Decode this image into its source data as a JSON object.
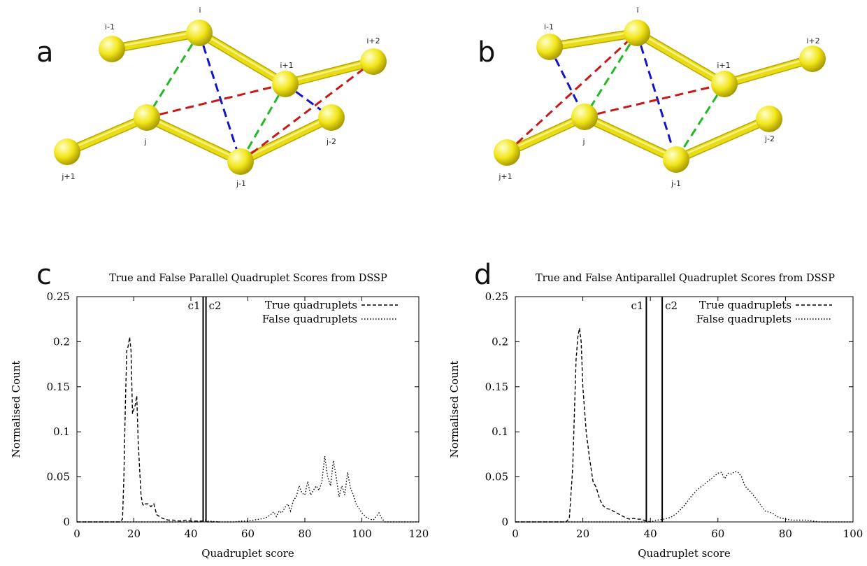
{
  "panels": [
    {
      "id": "a",
      "letter": "a",
      "nodes": [
        {
          "label": "i-1",
          "x": 0,
          "y": 0
        },
        {
          "label": "i",
          "x": 0,
          "y": 0
        },
        {
          "label": "i+1",
          "x": 0,
          "y": 0
        },
        {
          "label": "i+2",
          "x": 0,
          "y": 0
        },
        {
          "label": "j+1",
          "x": 0,
          "y": 0
        },
        {
          "label": "j",
          "x": 0,
          "y": 0
        },
        {
          "label": "j-1",
          "x": 0,
          "y": 0
        },
        {
          "label": "j-2",
          "x": 0,
          "y": 0
        }
      ],
      "bonds": [
        [
          "i-1",
          "i"
        ],
        [
          "i",
          "i+1"
        ],
        [
          "i+1",
          "i+2"
        ],
        [
          "j+1",
          "j"
        ],
        [
          "j",
          "j-1"
        ],
        [
          "j-1",
          "j-2"
        ]
      ],
      "dashed": [
        {
          "from": "i",
          "to": "j",
          "color": "green"
        },
        {
          "from": "i+1",
          "to": "j-1",
          "color": "green"
        },
        {
          "from": "i",
          "to": "j-1",
          "color": "blue"
        },
        {
          "from": "i+1",
          "to": "j-2",
          "color": "blue"
        },
        {
          "from": "j",
          "to": "i+1",
          "color": "red"
        },
        {
          "from": "j-1",
          "to": "i+2",
          "color": "red"
        }
      ]
    },
    {
      "id": "b",
      "letter": "b",
      "nodes": [
        {
          "label": "i-1",
          "x": 0,
          "y": 0
        },
        {
          "label": "i",
          "x": 0,
          "y": 0
        },
        {
          "label": "i+1",
          "x": 0,
          "y": 0
        },
        {
          "label": "i+2",
          "x": 0,
          "y": 0
        },
        {
          "label": "j+1",
          "x": 0,
          "y": 0
        },
        {
          "label": "j",
          "x": 0,
          "y": 0
        },
        {
          "label": "j-1",
          "x": 0,
          "y": 0
        },
        {
          "label": "j-2",
          "x": 0,
          "y": 0
        }
      ],
      "bonds": [
        [
          "i-1",
          "i"
        ],
        [
          "i",
          "i+1"
        ],
        [
          "i+1",
          "i+2"
        ],
        [
          "j+1",
          "j"
        ],
        [
          "j",
          "j-1"
        ],
        [
          "j-1",
          "j-2"
        ]
      ],
      "dashed": [
        {
          "from": "i-1",
          "to": "j",
          "color": "blue"
        },
        {
          "from": "i",
          "to": "j-1",
          "color": "blue"
        },
        {
          "from": "i",
          "to": "j",
          "color": "green"
        },
        {
          "from": "i+1",
          "to": "j-1",
          "color": "green"
        },
        {
          "from": "j+1",
          "to": "i",
          "color": "red"
        },
        {
          "from": "j",
          "to": "i+1",
          "color": "red"
        }
      ]
    }
  ],
  "colors": {
    "sphere": "#f2e61a",
    "sphere_highlight": "#ffffcc",
    "bond": "#e8dc16",
    "green": "#22b826",
    "blue": "#1414c8",
    "red": "#c81818",
    "axis": "#000000"
  },
  "chart_data": [
    {
      "letter": "c",
      "type": "line",
      "title": "True and False Parallel Quadruplet Scores from DSSP",
      "xlabel": "Quadruplet score",
      "ylabel": "Normalised Count",
      "xlim": [
        0,
        120
      ],
      "ylim": [
        0,
        0.25
      ],
      "xticks": [
        0,
        20,
        40,
        60,
        80,
        100,
        120
      ],
      "yticks": [
        0,
        0.05,
        0.1,
        0.15,
        0.2,
        0.25
      ],
      "ytick_labels": [
        "0",
        "0.05",
        "0.1",
        "0.15",
        "0.2",
        "0.25"
      ],
      "grid": false,
      "legend_position": "top-right",
      "vlines": [
        {
          "label": "c1",
          "x": 44.3
        },
        {
          "label": "c2",
          "x": 45.3
        }
      ],
      "series": [
        {
          "name": "True quadruplets",
          "dash": "5,3",
          "x": [
            0,
            15,
            16,
            16.5,
            17,
            17.5,
            18,
            18.5,
            19,
            19.5,
            20,
            20.5,
            21,
            21.5,
            22,
            22.5,
            23,
            23.5,
            24,
            25,
            26,
            27,
            28,
            30,
            32,
            34,
            36,
            38,
            40,
            42,
            44,
            46,
            48,
            50
          ],
          "y": [
            0,
            0,
            0.003,
            0.05,
            0.13,
            0.19,
            0.195,
            0.205,
            0.19,
            0.12,
            0.125,
            0.13,
            0.14,
            0.09,
            0.06,
            0.03,
            0.02,
            0.018,
            0.02,
            0.02,
            0.017,
            0.02,
            0.008,
            0.004,
            0.002,
            0.002,
            0.001,
            0.002,
            0.001,
            0.001,
            0.001,
            0,
            0,
            0
          ]
        },
        {
          "name": "False quadruplets",
          "dash": "1.5,2.5",
          "x": [
            0,
            44,
            45,
            46,
            50,
            55,
            58,
            60,
            62,
            64,
            66,
            68,
            69,
            70,
            71,
            72,
            73,
            74,
            75,
            76,
            77,
            78,
            79,
            80,
            81,
            82,
            83,
            84,
            85,
            86,
            87,
            88,
            89,
            90,
            91,
            92,
            93,
            94,
            95,
            96,
            97,
            98,
            100,
            102,
            104,
            106,
            107,
            108,
            120
          ],
          "y": [
            0,
            0,
            0.002,
            0.001,
            0,
            0,
            0.001,
            0.001,
            0.002,
            0.003,
            0.004,
            0.008,
            0.011,
            0.006,
            0.012,
            0.01,
            0.016,
            0.02,
            0.012,
            0.024,
            0.028,
            0.04,
            0.032,
            0.03,
            0.045,
            0.03,
            0.035,
            0.04,
            0.035,
            0.045,
            0.073,
            0.05,
            0.04,
            0.068,
            0.05,
            0.028,
            0.04,
            0.03,
            0.055,
            0.038,
            0.03,
            0.02,
            0.01,
            0.004,
            0.002,
            0.01,
            0.004,
            0,
            0
          ]
        }
      ]
    },
    {
      "letter": "d",
      "type": "line",
      "title": "True and False Antiparallel Quadruplet Scores from DSSP",
      "xlabel": "Quadruplet score",
      "ylabel": "Normalised Count",
      "xlim": [
        0,
        100
      ],
      "ylim": [
        0,
        0.25
      ],
      "xticks": [
        0,
        20,
        40,
        60,
        80,
        100
      ],
      "yticks": [
        0,
        0.05,
        0.1,
        0.15,
        0.2,
        0.25
      ],
      "ytick_labels": [
        "0",
        "0.05",
        "0.1",
        "0.15",
        "0.2",
        "0.25"
      ],
      "grid": false,
      "legend_position": "top-right",
      "vlines": [
        {
          "label": "c1",
          "x": 38.8
        },
        {
          "label": "c2",
          "x": 43.5
        }
      ],
      "series": [
        {
          "name": "True quadruplets",
          "dash": "5,3",
          "x": [
            0,
            15,
            16,
            17,
            18,
            18.5,
            19,
            19.5,
            20,
            21,
            22,
            23,
            24,
            25,
            26,
            27,
            28,
            29,
            30,
            31,
            32,
            33,
            34,
            35,
            36,
            37,
            38,
            39,
            40
          ],
          "y": [
            0,
            0,
            0.004,
            0.06,
            0.18,
            0.205,
            0.215,
            0.2,
            0.15,
            0.1,
            0.07,
            0.045,
            0.038,
            0.025,
            0.018,
            0.015,
            0.014,
            0.012,
            0.01,
            0.008,
            0.006,
            0.004,
            0.003,
            0.004,
            0.003,
            0.003,
            0.002,
            0.001,
            0
          ]
        },
        {
          "name": "False quadruplets",
          "dash": "1.5,2.5",
          "x": [
            0,
            40,
            42,
            44,
            46,
            48,
            50,
            52,
            54,
            56,
            58,
            60,
            61,
            62,
            63,
            64,
            65,
            66,
            67,
            68,
            70,
            72,
            74,
            76,
            78,
            80,
            82,
            84,
            86,
            88,
            90,
            100
          ],
          "y": [
            0,
            0,
            0.002,
            0.003,
            0.005,
            0.01,
            0.018,
            0.028,
            0.036,
            0.042,
            0.048,
            0.054,
            0.055,
            0.048,
            0.054,
            0.053,
            0.056,
            0.055,
            0.05,
            0.04,
            0.032,
            0.022,
            0.012,
            0.01,
            0.005,
            0.003,
            0.002,
            0.002,
            0.002,
            0.001,
            0,
            0
          ]
        }
      ]
    }
  ]
}
